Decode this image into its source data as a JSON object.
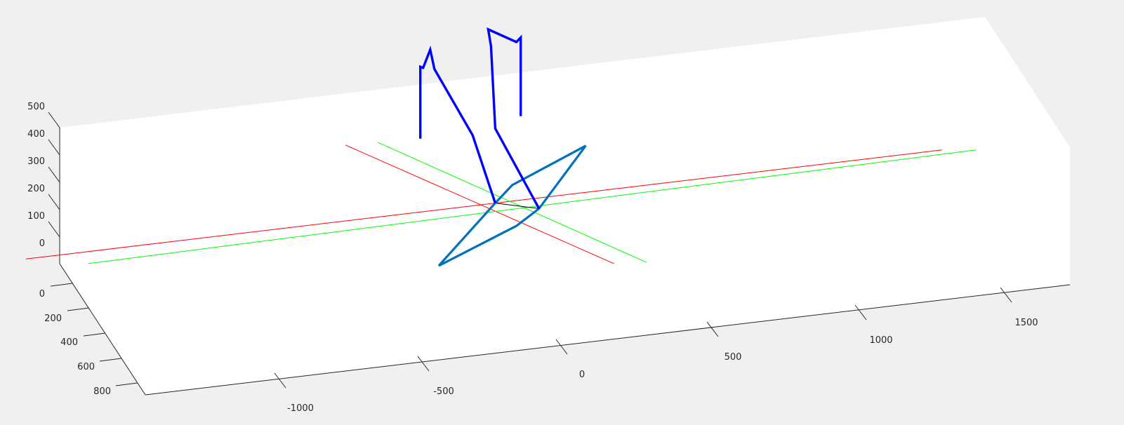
{
  "chart_data": {
    "type": "line3d",
    "title": "",
    "xlabel": "",
    "ylabel": "",
    "zlabel": "",
    "grid": false,
    "legend": "none",
    "axes": {
      "x": {
        "ticks": [
          -1000,
          -500,
          0,
          500,
          1000,
          1500
        ],
        "tick_labels": [
          "-1000",
          "-500",
          "0",
          "500",
          "1000",
          "1500"
        ]
      },
      "y": {
        "ticks": [
          0,
          200,
          400,
          600,
          800
        ],
        "tick_labels": [
          "0",
          "200",
          "400",
          "600",
          "800"
        ]
      },
      "z": {
        "ticks": [
          0,
          100,
          200,
          300,
          400,
          500
        ],
        "tick_labels": [
          "0",
          "100",
          "200",
          "300",
          "400",
          "500"
        ]
      }
    },
    "colors": {
      "figure_background": "#f0f0f0",
      "axes_background": "#ffffff",
      "axis_color": "#262626",
      "reference_red": "#ff0000",
      "reference_green": "#00ff00",
      "figure_blue": "#0000ff",
      "base_blue": "#0072bd",
      "origin_black": "#000000"
    },
    "series": [
      {
        "role": "reference",
        "color": "#ff0000",
        "points": [
          [
            -1660,
            0
          ],
          [
            1580,
            0
          ]
        ]
      },
      {
        "role": "reference",
        "color": "#ff0000",
        "points": [
          [
            -530,
            285
          ],
          [
            420,
            -280
          ]
        ]
      },
      {
        "role": "reference",
        "color": "#00ff00",
        "points": [
          [
            -1440,
            -45
          ],
          [
            1700,
            -15
          ]
        ]
      },
      {
        "role": "reference",
        "color": "#00ff00",
        "points": [
          [
            -415,
            280
          ],
          [
            535,
            -290
          ]
        ]
      },
      {
        "role": "origin",
        "color": "#000000",
        "points": [
          [
            0,
            0
          ],
          [
            155,
            -40
          ]
        ]
      },
      {
        "role": "figure",
        "color": "#0072bd",
        "points": [
          [
            -200,
            -210
          ],
          [
            75,
            -95
          ],
          [
            155,
            -40
          ],
          [
            320,
            175
          ],
          [
            60,
            60
          ],
          [
            0,
            0
          ],
          [
            -200,
            -210
          ]
        ]
      },
      {
        "role": "figure",
        "color": "#0000ff",
        "points": [
          [
            0,
            0
          ],
          [
            -80,
            265
          ],
          [
            -215,
            530
          ],
          [
            -230,
            605
          ],
          [
            -255,
            540
          ],
          [
            -265,
            545
          ],
          [
            -265,
            275
          ]
        ]
      },
      {
        "role": "figure",
        "color": "#0000ff",
        "points": [
          [
            155,
            -40
          ],
          [
            0,
            280
          ],
          [
            -15,
            590
          ],
          [
            -25,
            655
          ],
          [
            75,
            595
          ],
          [
            90,
            610
          ],
          [
            90,
            315
          ]
        ]
      }
    ]
  }
}
